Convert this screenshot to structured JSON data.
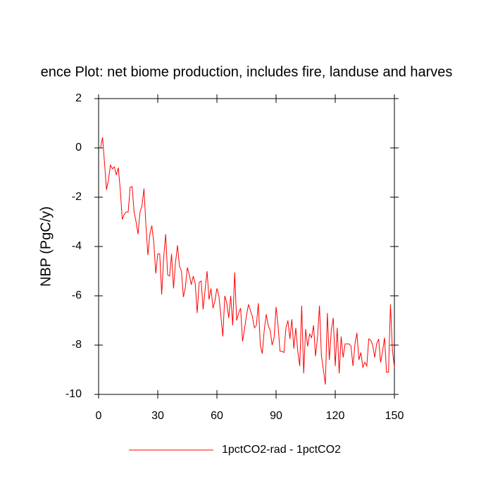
{
  "chart_data": {
    "type": "line",
    "title": "ence Plot: net biome production, includes fire, landuse and harves",
    "ylabel": "NBP  (PgC/y)",
    "x": [
      1,
      2,
      3,
      4,
      5,
      6,
      7,
      8,
      9,
      10,
      11,
      12,
      13,
      14,
      15,
      16,
      17,
      18,
      19,
      20,
      21,
      22,
      23,
      24,
      25,
      26,
      27,
      28,
      29,
      30,
      31,
      32,
      33,
      34,
      35,
      36,
      37,
      38,
      39,
      40,
      41,
      42,
      43,
      44,
      45,
      46,
      47,
      48,
      49,
      50,
      51,
      52,
      53,
      54,
      55,
      56,
      57,
      58,
      59,
      60,
      61,
      62,
      63,
      64,
      65,
      66,
      67,
      68,
      69,
      70,
      71,
      72,
      73,
      74,
      75,
      76,
      77,
      78,
      79,
      80,
      81,
      82,
      83,
      84,
      85,
      86,
      87,
      88,
      89,
      90,
      91,
      92,
      93,
      94,
      95,
      96,
      97,
      98,
      99,
      100,
      101,
      102,
      103,
      104,
      105,
      106,
      107,
      108,
      109,
      110,
      111,
      112,
      113,
      114,
      115,
      116,
      117,
      118,
      119,
      120,
      121,
      122,
      123,
      124,
      125,
      126,
      127,
      128,
      129,
      130,
      131,
      132,
      133,
      134,
      135,
      136,
      137,
      138,
      139,
      140,
      141,
      142,
      143,
      144,
      145,
      146,
      147,
      148,
      149,
      150
    ],
    "series": [
      {
        "name": "1pctCO2-rad - 1pctCO2",
        "color": "#ff0000",
        "values": [
          0,
          0.43,
          -0.6,
          -1.7,
          -1.3,
          -0.7,
          -0.85,
          -0.77,
          -1.1,
          -0.8,
          -1.7,
          -2.9,
          -2.7,
          -2.6,
          -2.6,
          -1.6,
          -1.57,
          -2.6,
          -3.0,
          -3.5,
          -2.6,
          -2.35,
          -1.65,
          -3.15,
          -4.35,
          -3.5,
          -3.15,
          -3.85,
          -5.1,
          -4.3,
          -4.3,
          -5.95,
          -4.45,
          -3.5,
          -5.15,
          -5.2,
          -4.3,
          -5.7,
          -4.65,
          -3.95,
          -4.8,
          -5.0,
          -6.05,
          -5.65,
          -4.85,
          -5.15,
          -5.55,
          -5.2,
          -5.5,
          -6.7,
          -5.45,
          -5.4,
          -6.55,
          -5.75,
          -5.0,
          -6.15,
          -5.7,
          -6.5,
          -6.2,
          -5.7,
          -6.0,
          -6.8,
          -7.65,
          -6.0,
          -6.3,
          -6.9,
          -6.0,
          -7.2,
          -5.05,
          -7.0,
          -6.7,
          -6.5,
          -7.85,
          -7.35,
          -6.8,
          -6.35,
          -6.6,
          -6.85,
          -7.3,
          -7.2,
          -6.3,
          -8.0,
          -8.35,
          -7.4,
          -6.75,
          -7.2,
          -7.4,
          -8.0,
          -7.7,
          -6.45,
          -7.2,
          -8.25,
          -8.25,
          -8.3,
          -7.3,
          -7.0,
          -7.75,
          -6.95,
          -8.15,
          -7.3,
          -8.25,
          -8.85,
          -6.4,
          -9.15,
          -7.35,
          -8.05,
          -7.55,
          -7.7,
          -7.2,
          -8.45,
          -7.7,
          -6.4,
          -8.45,
          -9.0,
          -9.6,
          -6.7,
          -8.6,
          -7.4,
          -6.9,
          -8.85,
          -7.3,
          -9.15,
          -7.65,
          -8.5,
          -7.95,
          -7.95,
          -7.95,
          -8.05,
          -8.85,
          -7.95,
          -7.5,
          -8.6,
          -8.3,
          -8.9,
          -8.7,
          -8.85,
          -7.75,
          -7.8,
          -8.0,
          -8.5,
          -7.95,
          -7.75,
          -8.7,
          -8.25,
          -7.7,
          -9.1,
          -9.1,
          -6.35,
          -8.2,
          -8.9
        ]
      }
    ],
    "xlim": [
      0,
      150
    ],
    "xticks": [
      0,
      30,
      60,
      90,
      120,
      150
    ],
    "ylim": [
      -10,
      2
    ],
    "yticks": [
      -10,
      -8,
      -6,
      -4,
      -2,
      0,
      2
    ]
  }
}
